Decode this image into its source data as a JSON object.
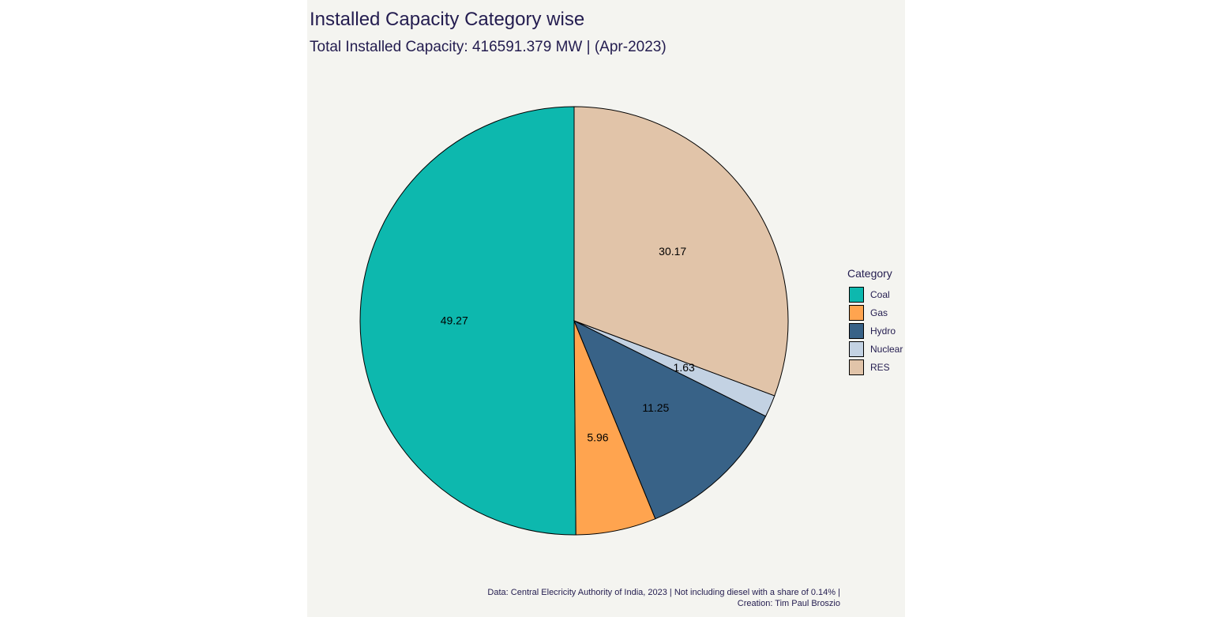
{
  "chart_data": {
    "type": "pie",
    "title": "Installed Capacity Category wise",
    "subtitle": "Total Installed Capacity: 416591.379 MW | (Apr-2023)",
    "legend_title": "Category",
    "legend_position": "right",
    "categories": [
      "Coal",
      "Gas",
      "Hydro",
      "Nuclear",
      "RES"
    ],
    "values": [
      49.27,
      5.96,
      11.25,
      1.63,
      30.17
    ],
    "labels": [
      "49.27",
      "5.96",
      "11.25",
      "1.63",
      "30.17"
    ],
    "colors": [
      "#0db8ae",
      "#ffa44f",
      "#386287",
      "#c3d2e3",
      "#e1c4a9"
    ]
  },
  "caption": {
    "line1": "Data: Central Elecricity Authority of India, 2023 | Not including diesel with a share of 0.14% |",
    "line2": "Creation: Tim Paul Broszio"
  }
}
